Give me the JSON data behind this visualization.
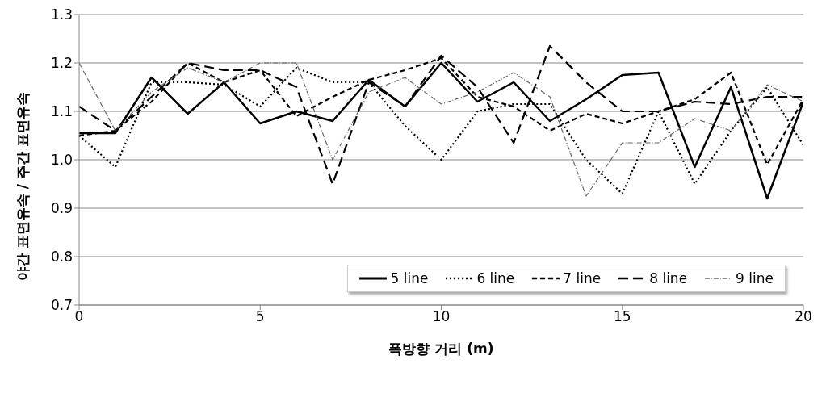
{
  "chart_data": {
    "type": "line",
    "xlabel": "폭방향 거리 (m)",
    "ylabel": "야간 표면유속 / 주간 표면유속",
    "x": [
      0,
      1,
      2,
      3,
      4,
      5,
      6,
      7,
      8,
      9,
      10,
      11,
      12,
      13,
      14,
      15,
      16,
      17,
      18,
      19,
      20
    ],
    "xlim": [
      0,
      20
    ],
    "xticks": [
      0,
      5,
      10,
      15,
      20
    ],
    "ylim": [
      0.7,
      1.3
    ],
    "yticks": [
      {
        "value": 0.7,
        "label": "0.7"
      },
      {
        "value": 0.8,
        "label": "0.8"
      },
      {
        "value": 0.9,
        "label": "0.9"
      },
      {
        "value": 1,
        "label": "1.0"
      },
      {
        "value": 1.1,
        "label": "1.1"
      },
      {
        "value": 1.2,
        "label": "1.2"
      },
      {
        "value": 1.3,
        "label": "1.3"
      }
    ],
    "grid": "y",
    "legend": "bottom right",
    "marker": "none",
    "series": [
      {
        "name": "5 line",
        "color": "#000000",
        "line_style": "solid",
        "values": [
          1.055,
          1.055,
          1.17,
          1.095,
          1.16,
          1.075,
          1.1,
          1.08,
          1.165,
          1.11,
          1.2,
          1.12,
          1.16,
          1.08,
          1.125,
          1.175,
          1.18,
          0.985,
          1.15,
          0.92,
          1.12
        ]
      },
      {
        "name": "6 line",
        "color": "#000000",
        "line_style": "dotted",
        "values": [
          1.05,
          0.985,
          1.16,
          1.16,
          1.155,
          1.11,
          1.19,
          1.16,
          1.16,
          1.07,
          1.0,
          1.1,
          1.115,
          1.115,
          1.0,
          0.93,
          1.1,
          0.95,
          1.06,
          1.15,
          1.03
        ]
      },
      {
        "name": "7 line",
        "color": "#000000",
        "line_style": "dashed",
        "values": [
          1.05,
          1.06,
          1.12,
          1.2,
          1.16,
          1.185,
          1.09,
          1.13,
          1.165,
          1.185,
          1.21,
          1.13,
          1.11,
          1.06,
          1.095,
          1.075,
          1.1,
          1.125,
          1.18,
          0.99,
          1.125
        ]
      },
      {
        "name": "8 line",
        "color": "#000000",
        "line_style": "dashed",
        "values": [
          1.11,
          1.06,
          1.13,
          1.2,
          1.185,
          1.185,
          1.15,
          0.95,
          1.16,
          1.11,
          1.215,
          1.15,
          1.035,
          1.235,
          1.16,
          1.1,
          1.1,
          1.12,
          1.115,
          1.13,
          1.13
        ]
      },
      {
        "name": "9 line",
        "color": "#666666",
        "line_style": "dashed",
        "values": [
          1.2,
          1.06,
          1.14,
          1.19,
          1.16,
          1.2,
          1.2,
          1.0,
          1.14,
          1.17,
          1.115,
          1.14,
          1.18,
          1.13,
          0.925,
          1.035,
          1.035,
          1.085,
          1.06,
          1.155,
          1.12
        ]
      }
    ]
  }
}
